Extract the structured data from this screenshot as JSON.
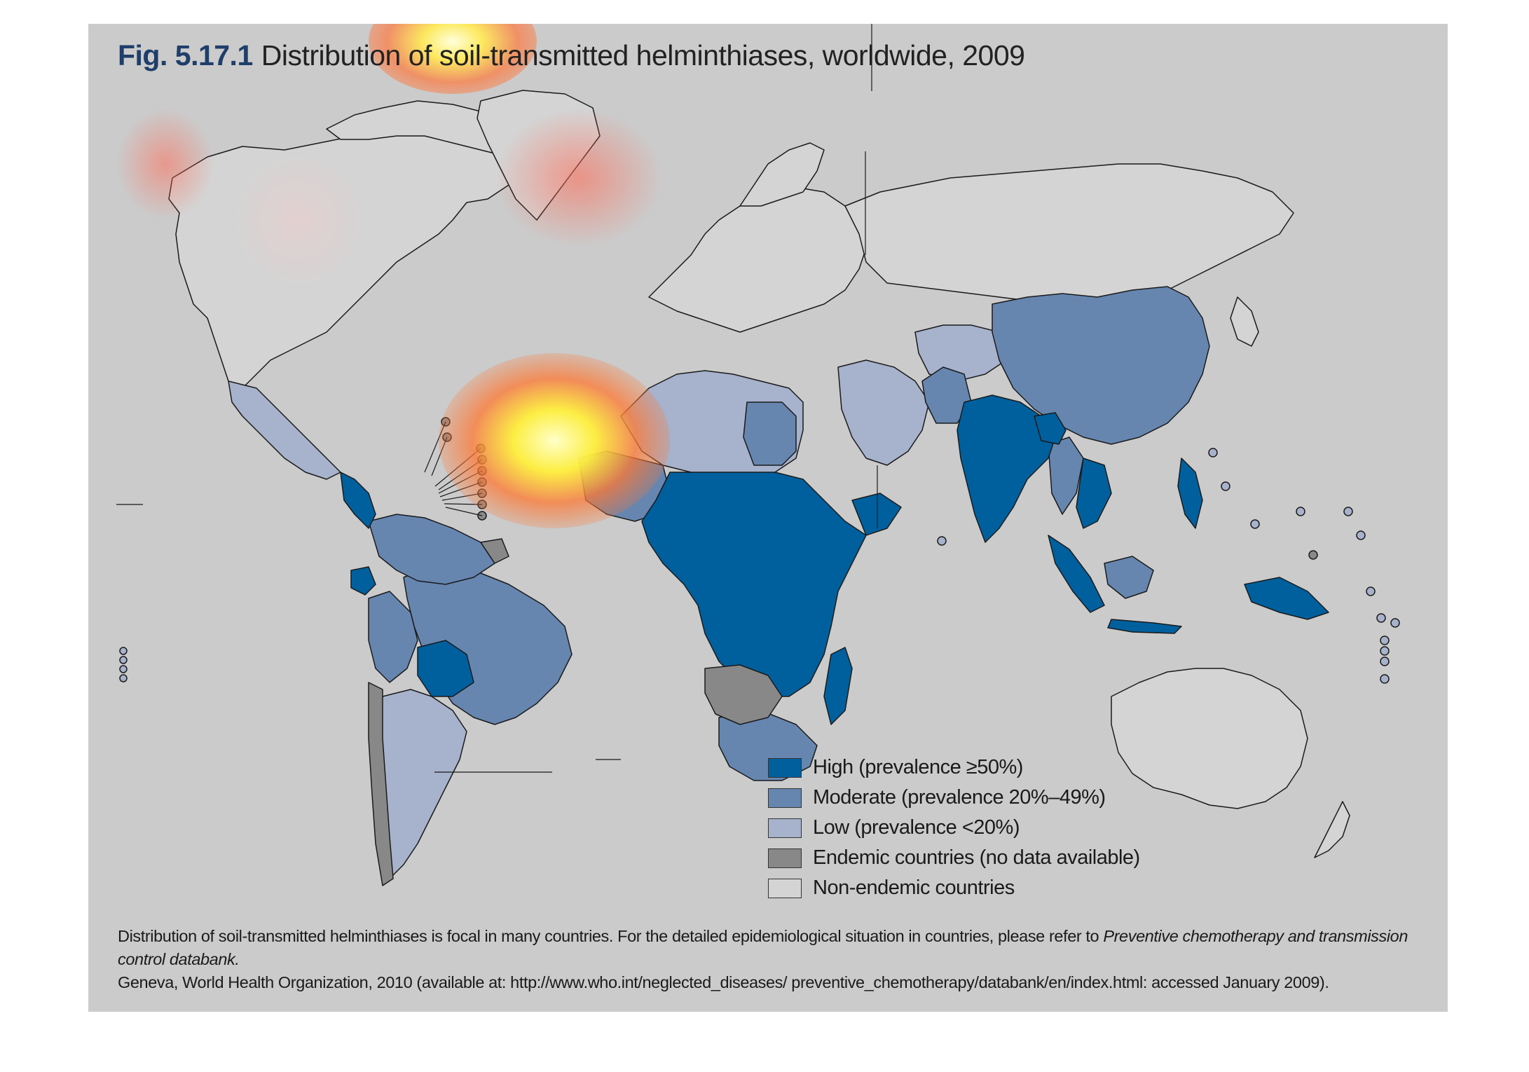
{
  "figure": {
    "number": "Fig. 5.17.1",
    "title": "Distribution of soil-transmitted helminthiases, worldwide, 2009"
  },
  "legend": [
    {
      "label": "High (prevalence ≥50%)",
      "color": "#00609e"
    },
    {
      "label": "Moderate (prevalence 20%–49%)",
      "color": "#6686b0"
    },
    {
      "label": "Low (prevalence <20%)",
      "color": "#a7b2cc"
    },
    {
      "label": "Endemic countries (no data available)",
      "color": "#888888"
    },
    {
      "label": "Non-endemic countries",
      "color": "#d4d4d4"
    }
  ],
  "caption": {
    "text_before": "Distribution of soil-transmitted helminthiases is focal in many countries. For the detailed epidemiological situation in countries, please refer to ",
    "italic": "Preventive chemotherapy and transmission control databank.",
    "text_after": "Geneva, World Health Organization, 2010 (available at: http://www.who.int/neglected_diseases/ preventive_chemotherapy/databank/en/index.html: accessed January 2009)."
  },
  "colors": {
    "panel_background": "#cbcbcb",
    "high": "#00609e",
    "moderate": "#6686b0",
    "low": "#a7b2cc",
    "endemic_no_data": "#888888",
    "non_endemic": "#d4d4d4",
    "title_number": "#1f3e6b"
  }
}
